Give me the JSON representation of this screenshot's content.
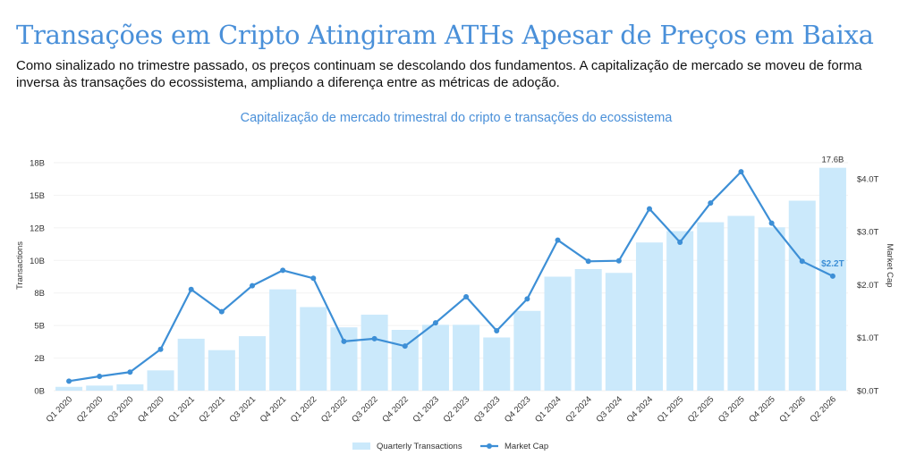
{
  "page": {
    "headline": "Transações em Cripto Atingiram ATHs Apesar de Preços em Baixa",
    "subtitle": "Como sinalizado no trimestre passado, os preços continuam se descolando dos fundamentos. A capitalização de mercado se moveu de forma inversa às transações do ecossistema, ampliando a diferença entre as métricas de adoção."
  },
  "chart_data": {
    "type": "bar",
    "title": "Capitalização de mercado trimestral do cripto e transações do ecossistema",
    "categories": [
      "Q1 2020",
      "Q2 2020",
      "Q3 2020",
      "Q4 2020",
      "Q1 2021",
      "Q2 2021",
      "Q3 2021",
      "Q4 2021",
      "Q1 2022",
      "Q2 2022",
      "Q3 2022",
      "Q4 2022",
      "Q1 2023",
      "Q2 2023",
      "Q3 2023",
      "Q4 2023",
      "Q1 2024",
      "Q2 2024",
      "Q3 2024",
      "Q4 2024",
      "Q1 2025",
      "Q2 2025",
      "Q3 2025",
      "Q4 2025",
      "Q1 2026",
      "Q2 2026"
    ],
    "series": [
      {
        "name": "Quarterly Transactions",
        "kind": "bar",
        "axis": "left",
        "color": "#cbe9fb",
        "values": [
          0.3,
          0.4,
          0.5,
          1.6,
          4.1,
          3.2,
          4.3,
          8.0,
          6.6,
          5.0,
          6.0,
          4.8,
          5.2,
          5.2,
          4.2,
          6.3,
          9.0,
          9.6,
          9.3,
          11.7,
          12.6,
          13.3,
          13.8,
          12.9,
          15.0,
          17.6
        ]
      },
      {
        "name": "Market Cap",
        "kind": "line",
        "axis": "right",
        "color": "#3d8fd6",
        "values": [
          0.18,
          0.27,
          0.35,
          0.78,
          1.91,
          1.49,
          1.98,
          2.27,
          2.12,
          0.93,
          0.98,
          0.84,
          1.28,
          1.77,
          1.13,
          1.73,
          2.84,
          2.44,
          2.45,
          3.43,
          2.8,
          3.54,
          4.13,
          3.16,
          2.44,
          2.16
        ]
      }
    ],
    "y_left": {
      "label": "Transactions",
      "lim": [
        0,
        18
      ],
      "ticks": [
        "0B",
        "2B",
        "5B",
        "8B",
        "10B",
        "12B",
        "15B",
        "18B"
      ]
    },
    "y_right": {
      "label": "Market Cap",
      "lim": [
        0,
        4.3
      ],
      "ticks": [
        "$0.0T",
        "$1.0T",
        "$2.0T",
        "$3.0T",
        "$4.0T"
      ]
    },
    "annotations": {
      "last_bar": "17.6B",
      "last_point": "$2.2T"
    },
    "legend_position": "bottom",
    "grid": false
  }
}
